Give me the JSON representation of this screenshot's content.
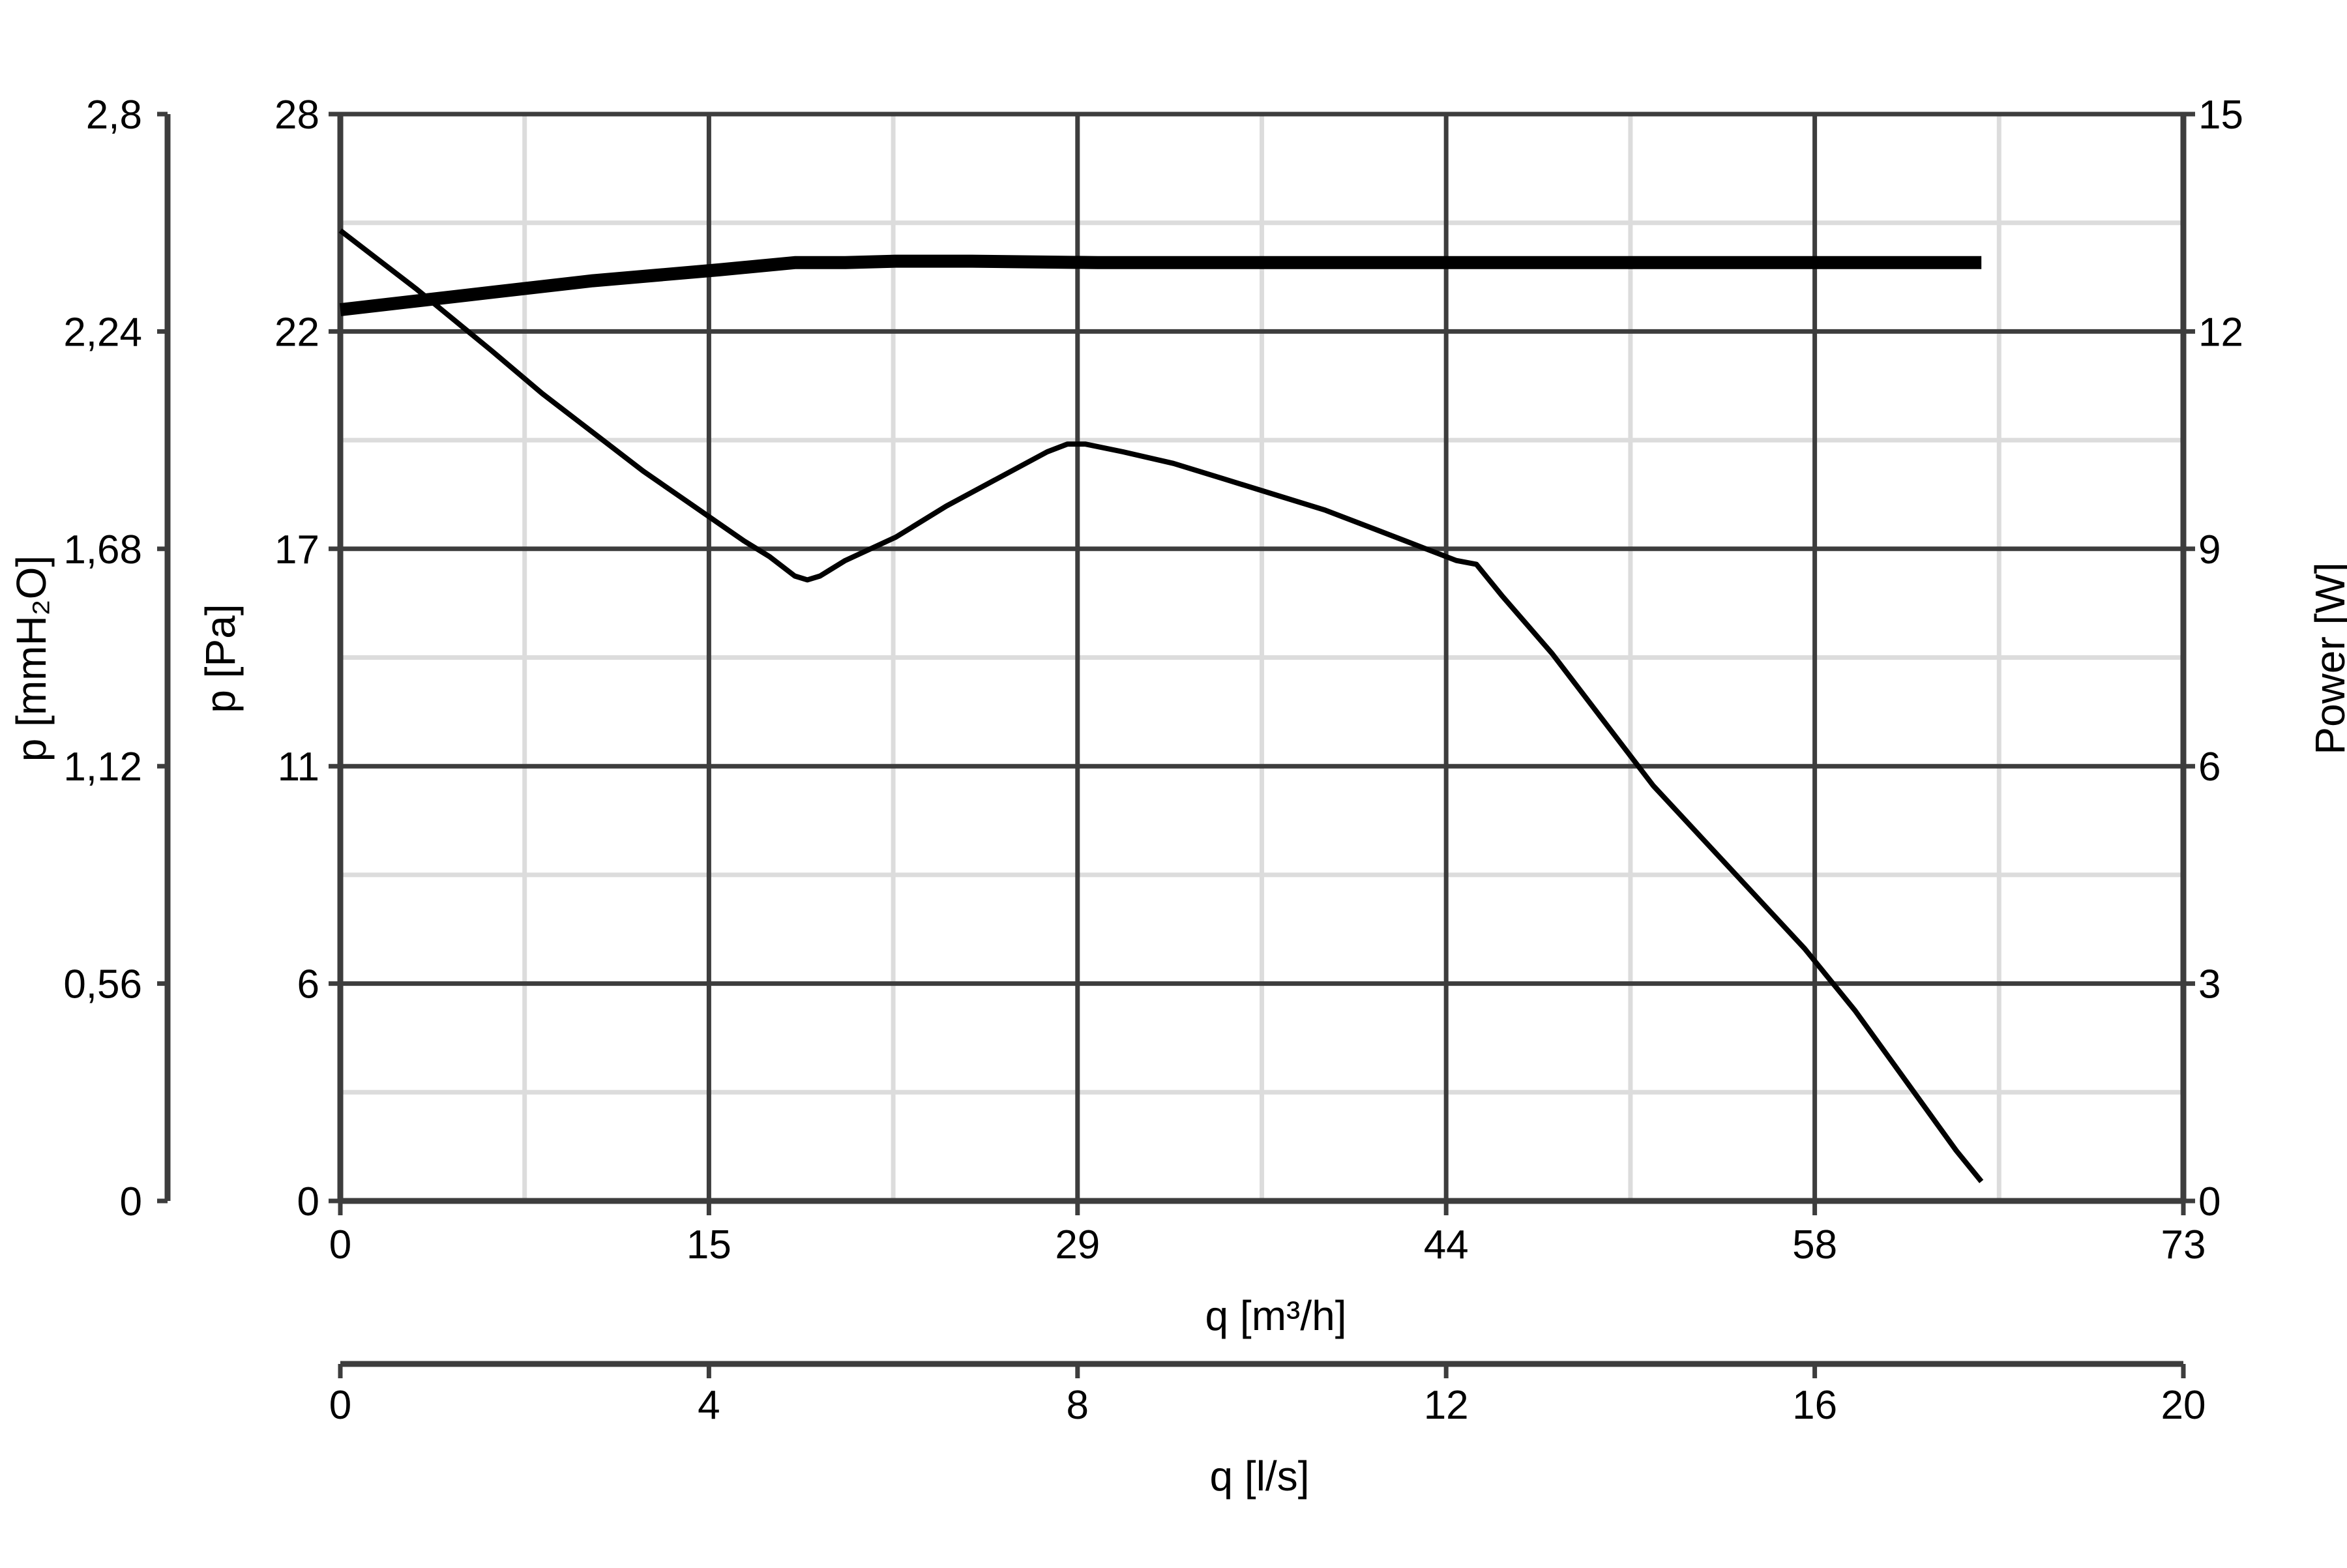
{
  "chart_data": {
    "type": "line",
    "title": "",
    "x_axis": {
      "label": "q [m³/h]",
      "ticks": [
        "0",
        "15",
        "29",
        "44",
        "58",
        "73"
      ],
      "range": [
        0,
        73
      ]
    },
    "x2_axis": {
      "label": "q [l/s]",
      "ticks": [
        "0",
        "4",
        "8",
        "12",
        "16",
        "20"
      ],
      "range": [
        0,
        20
      ]
    },
    "y_axis": {
      "label": "p [Pa]",
      "ticks": [
        "0",
        "6",
        "11",
        "17",
        "22",
        "28"
      ],
      "range": [
        0,
        28
      ]
    },
    "y_left2_axis": {
      "label": "p [mmH₂O]",
      "ticks": [
        "0",
        "0,56",
        "1,12",
        "1,68",
        "2,24",
        "2,8"
      ],
      "range": [
        0,
        2.8
      ]
    },
    "y_right_axis": {
      "label": "Power [W]",
      "ticks": [
        "0",
        "3",
        "6",
        "9",
        "12",
        "15"
      ],
      "range": [
        0,
        15
      ]
    },
    "grid": true,
    "series": [
      {
        "axis": "left",
        "color": "#000000",
        "x": [
          0,
          3,
          6,
          8,
          10,
          12,
          14,
          16,
          17,
          18,
          18.5,
          19,
          20,
          22,
          24,
          26,
          28,
          28.8,
          29.5,
          31,
          33,
          35,
          37,
          39,
          41,
          43,
          44.2,
          45,
          46,
          48,
          50,
          52,
          54,
          56,
          58,
          60,
          62,
          64,
          65
        ],
        "y": [
          25,
          23.5,
          21.9,
          20.8,
          19.8,
          18.8,
          17.9,
          17,
          16.6,
          16.1,
          16,
          16.1,
          16.5,
          17.1,
          17.9,
          18.6,
          19.3,
          19.5,
          19.5,
          19.3,
          19,
          18.6,
          18.2,
          17.8,
          17.3,
          16.8,
          16.5,
          16.4,
          15.6,
          14.1,
          12.4,
          10.7,
          9.3,
          7.9,
          6.5,
          4.9,
          3.1,
          1.3,
          0.5
        ]
      },
      {
        "axis": "right",
        "color": "#000000",
        "x": [
          0,
          5,
          10,
          15,
          18,
          20,
          22,
          25,
          30,
          40,
          50,
          60,
          65
        ],
        "y": [
          12.3,
          12.5,
          12.7,
          12.85,
          12.95,
          12.95,
          12.97,
          12.97,
          12.95,
          12.95,
          12.95,
          12.95,
          12.95
        ]
      }
    ]
  }
}
